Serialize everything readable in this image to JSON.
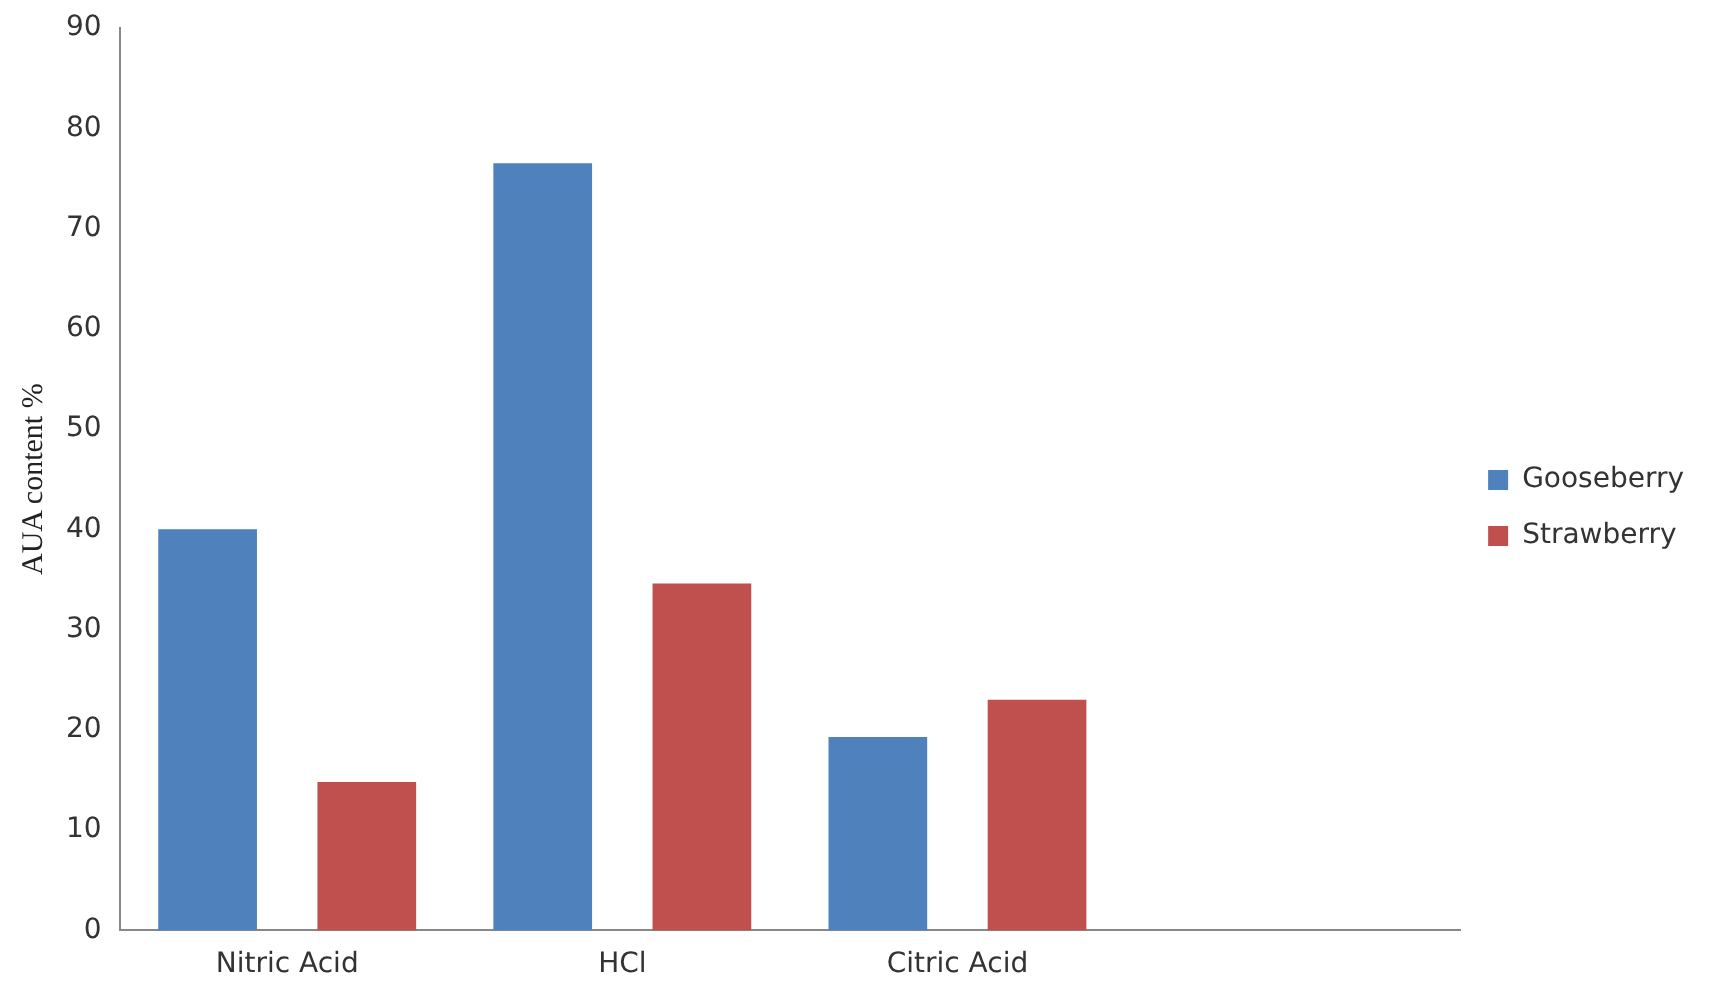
{
  "chart_data": {
    "type": "bar",
    "ylabel": "AUA content %",
    "categories": [
      "Nitric Acid",
      "HCl",
      "Citric Acid",
      null
    ],
    "series": [
      {
        "name": "Gooseberry",
        "color": "#4f81bd",
        "values": [
          40,
          76.5,
          19.3,
          null
        ]
      },
      {
        "name": "Strawberry",
        "color": "#c0504d",
        "values": [
          14.8,
          34.6,
          23,
          null
        ]
      }
    ],
    "ylim": [
      0,
      90
    ],
    "yticks": [
      0,
      10,
      20,
      30,
      40,
      50,
      60,
      70,
      80,
      90
    ],
    "grid": false,
    "legend": "right"
  }
}
